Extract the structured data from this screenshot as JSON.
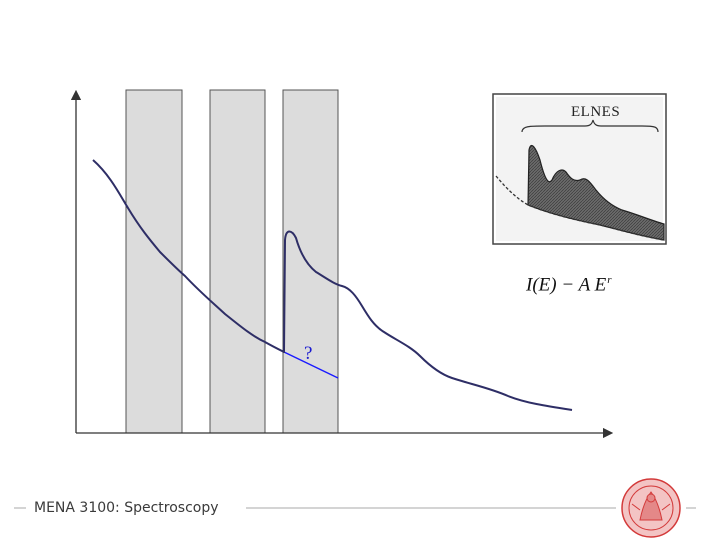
{
  "footer": {
    "text": "MENA 3100: Spectroscopy"
  },
  "inset": {
    "label": "ELNES"
  },
  "formula": {
    "main": "I(E) − A E",
    "exponent": "r"
  },
  "edge": {
    "question_mark": "?"
  },
  "colors": {
    "shade": "#dcdcdc",
    "spectrum": "#2e2e66",
    "extrapolation": "#1a1aff",
    "seal": "#d33a3a"
  },
  "icons": {
    "logo": "university-seal-icon"
  }
}
